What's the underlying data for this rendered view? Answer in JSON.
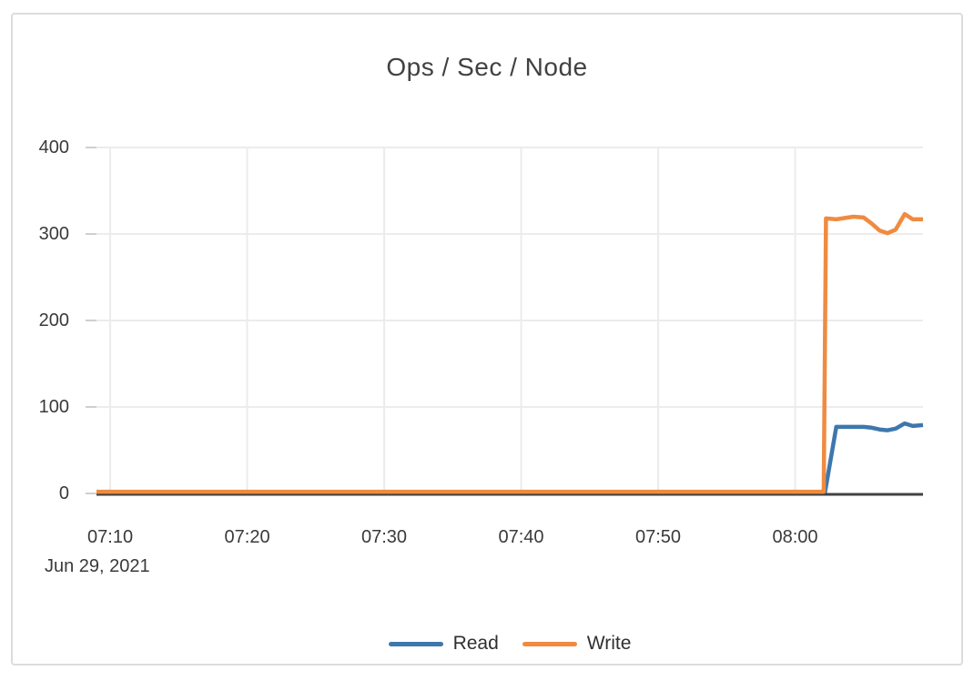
{
  "chart_data": {
    "type": "line",
    "title": "Ops / Sec / Node",
    "x_axis": {
      "date_label": "Jun 29, 2021",
      "range": [
        "07:09:00",
        "08:09:20"
      ],
      "ticks": [
        "07:10",
        "07:20",
        "07:30",
        "07:40",
        "07:50",
        "08:00"
      ]
    },
    "y_axis": {
      "range": [
        0,
        400
      ],
      "ticks": [
        0,
        100,
        200,
        300,
        400
      ]
    },
    "grid": true,
    "legend_position": "bottom",
    "series": [
      {
        "name": "Read",
        "color": "#3d78ad",
        "points": [
          [
            "07:09:00",
            0
          ],
          [
            "08:02:10",
            0
          ],
          [
            "08:03:00",
            77
          ],
          [
            "08:04:00",
            77
          ],
          [
            "08:05:00",
            77
          ],
          [
            "08:05:35",
            76
          ],
          [
            "08:06:10",
            74
          ],
          [
            "08:06:45",
            73
          ],
          [
            "08:07:20",
            75
          ],
          [
            "08:08:00",
            81
          ],
          [
            "08:08:35",
            78
          ],
          [
            "08:09:20",
            79
          ]
        ]
      },
      {
        "name": "Write",
        "color": "#ef8b40",
        "points": [
          [
            "07:09:00",
            2
          ],
          [
            "08:02:05",
            2
          ],
          [
            "08:02:15",
            318
          ],
          [
            "08:03:00",
            317
          ],
          [
            "08:04:15",
            320
          ],
          [
            "08:05:00",
            319
          ],
          [
            "08:05:35",
            312
          ],
          [
            "08:06:10",
            304
          ],
          [
            "08:06:45",
            301
          ],
          [
            "08:07:20",
            305
          ],
          [
            "08:08:00",
            323
          ],
          [
            "08:08:35",
            317
          ],
          [
            "08:09:20",
            317
          ]
        ]
      }
    ]
  }
}
